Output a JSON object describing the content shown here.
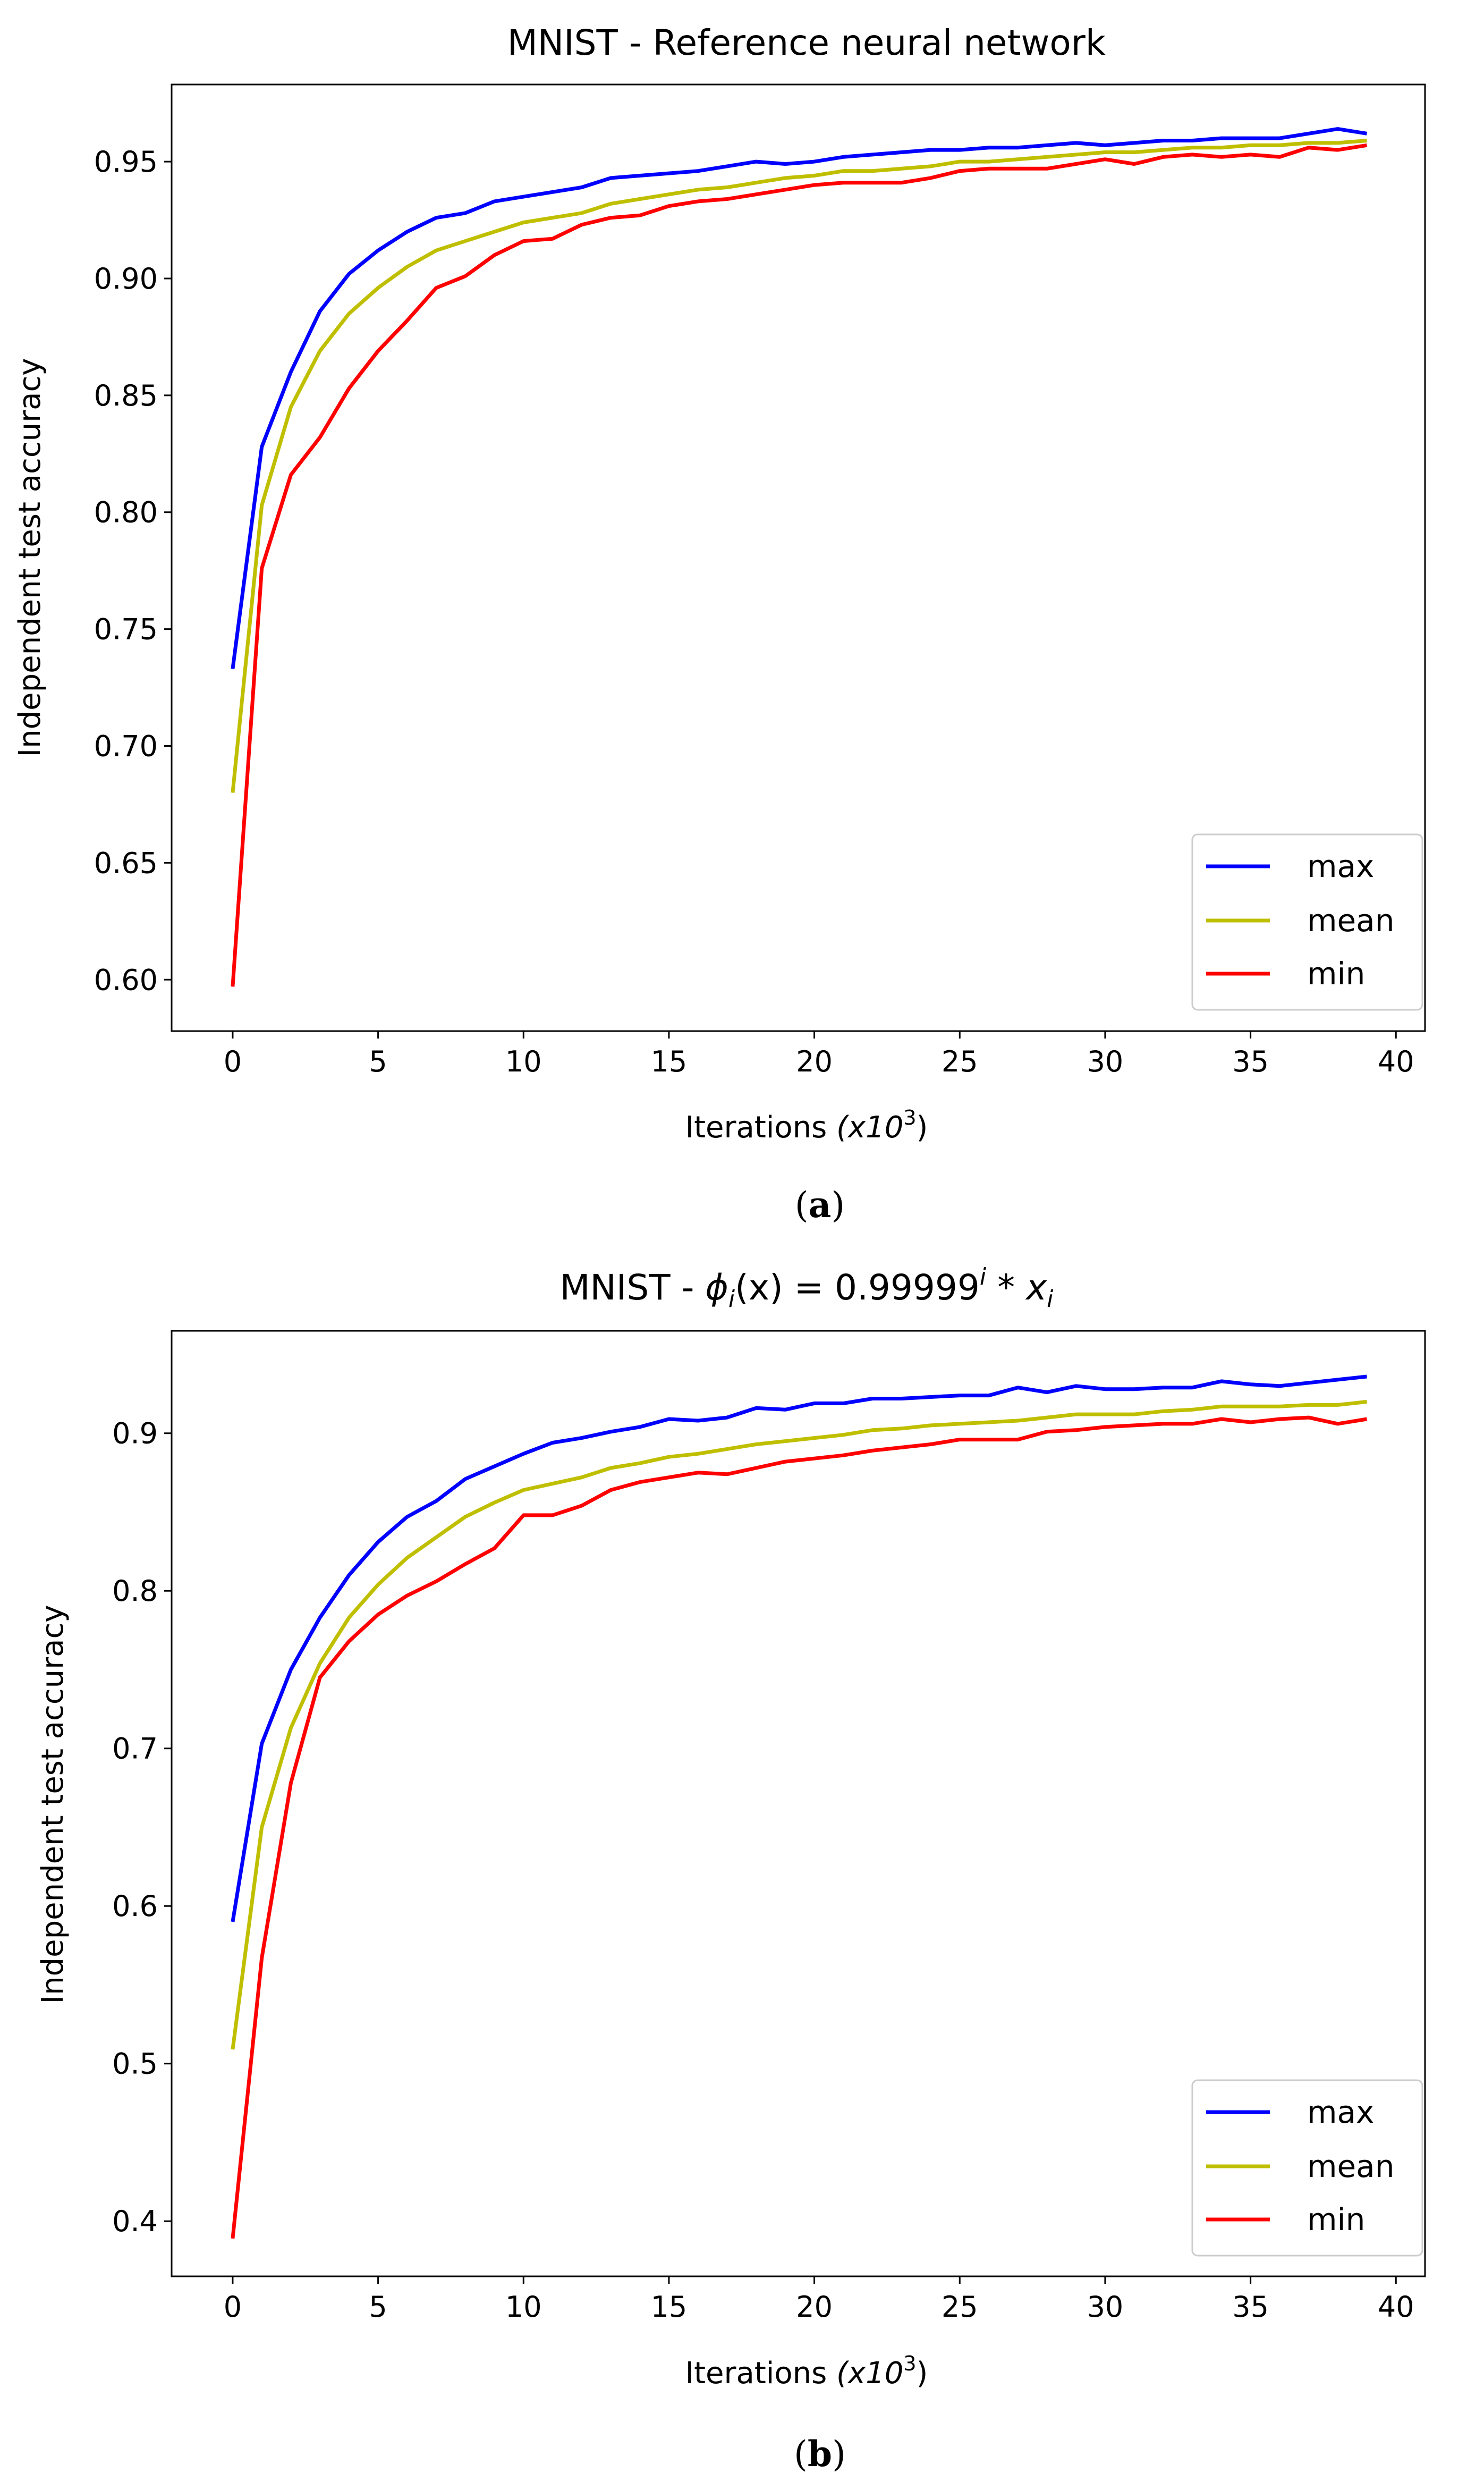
{
  "chart_data": [
    {
      "type": "line",
      "title": "MNIST - Reference neural network",
      "xlabel": "Iterations",
      "xlabel_unit": "(x10",
      "xlabel_exp": "3",
      "xlabel_close": ")",
      "ylabel": "Independent test accuracy",
      "xlim": [
        -2.1,
        41
      ],
      "ylim": [
        0.578,
        0.983
      ],
      "xticks": [
        0,
        5,
        10,
        15,
        20,
        25,
        30,
        35,
        40
      ],
      "xtick_labels": [
        "0",
        "5",
        "10",
        "15",
        "20",
        "25",
        "30",
        "35",
        "40"
      ],
      "yticks": [
        0.6,
        0.65,
        0.7,
        0.75,
        0.8,
        0.85,
        0.9,
        0.95
      ],
      "ytick_labels": [
        "0.60",
        "0.65",
        "0.70",
        "0.75",
        "0.80",
        "0.85",
        "0.90",
        "0.95"
      ],
      "legend_position": "lower-right",
      "caption_open": "(",
      "caption_letter": "a",
      "caption_close": ")",
      "x": [
        0,
        1,
        2,
        3,
        4,
        5,
        6,
        7,
        8,
        9,
        10,
        11,
        12,
        13,
        14,
        15,
        16,
        17,
        18,
        19,
        20,
        21,
        22,
        23,
        24,
        25,
        26,
        27,
        28,
        29,
        30,
        31,
        32,
        33,
        34,
        35,
        36,
        37,
        38,
        39
      ],
      "series": [
        {
          "name": "max",
          "color": "#0000ff",
          "values": [
            0.733,
            0.828,
            0.86,
            0.886,
            0.902,
            0.912,
            0.92,
            0.926,
            0.928,
            0.933,
            0.935,
            0.937,
            0.939,
            0.943,
            0.944,
            0.945,
            0.946,
            0.948,
            0.95,
            0.949,
            0.95,
            0.952,
            0.953,
            0.954,
            0.955,
            0.955,
            0.956,
            0.956,
            0.957,
            0.958,
            0.957,
            0.958,
            0.959,
            0.959,
            0.96,
            0.96,
            0.96,
            0.962,
            0.964,
            0.962
          ]
        },
        {
          "name": "mean",
          "color": "#bfbf00",
          "values": [
            0.68,
            0.803,
            0.845,
            0.869,
            0.885,
            0.896,
            0.905,
            0.912,
            0.916,
            0.92,
            0.924,
            0.926,
            0.928,
            0.932,
            0.934,
            0.936,
            0.938,
            0.939,
            0.941,
            0.943,
            0.944,
            0.946,
            0.946,
            0.947,
            0.948,
            0.95,
            0.95,
            0.951,
            0.952,
            0.953,
            0.954,
            0.954,
            0.955,
            0.956,
            0.956,
            0.957,
            0.957,
            0.958,
            0.958,
            0.959
          ]
        },
        {
          "name": "min",
          "color": "#ff0000",
          "values": [
            0.597,
            0.776,
            0.816,
            0.832,
            0.853,
            0.869,
            0.882,
            0.896,
            0.901,
            0.91,
            0.916,
            0.917,
            0.923,
            0.926,
            0.927,
            0.931,
            0.933,
            0.934,
            0.936,
            0.938,
            0.94,
            0.941,
            0.941,
            0.941,
            0.943,
            0.946,
            0.947,
            0.947,
            0.947,
            0.949,
            0.951,
            0.949,
            0.952,
            0.953,
            0.952,
            0.953,
            0.952,
            0.956,
            0.955,
            0.957
          ]
        }
      ]
    },
    {
      "type": "line",
      "title_prefix": "MNIST - ",
      "title_phi": "ϕ",
      "title_sub_i": "i",
      "title_paren_x": "(x) = 0.99999",
      "title_sup_i": "i",
      "title_star_x": " * x",
      "title_sub_i2": "i",
      "xlabel": "Iterations",
      "xlabel_unit": "(x10",
      "xlabel_exp": "3",
      "xlabel_close": ")",
      "ylabel": "Independent test accuracy",
      "xlim": [
        -2.1,
        41
      ],
      "ylim": [
        0.365,
        0.965
      ],
      "xticks": [
        0,
        5,
        10,
        15,
        20,
        25,
        30,
        35,
        40
      ],
      "xtick_labels": [
        "0",
        "5",
        "10",
        "15",
        "20",
        "25",
        "30",
        "35",
        "40"
      ],
      "yticks": [
        0.4,
        0.5,
        0.6,
        0.7,
        0.8,
        0.9
      ],
      "ytick_labels": [
        "0.4",
        "0.5",
        "0.6",
        "0.7",
        "0.8",
        "0.9"
      ],
      "legend_position": "lower-right",
      "caption_open": "(",
      "caption_letter": "b",
      "caption_close": ")",
      "x": [
        0,
        1,
        2,
        3,
        4,
        5,
        6,
        7,
        8,
        9,
        10,
        11,
        12,
        13,
        14,
        15,
        16,
        17,
        18,
        19,
        20,
        21,
        22,
        23,
        24,
        25,
        26,
        27,
        28,
        29,
        30,
        31,
        32,
        33,
        34,
        35,
        36,
        37,
        38,
        39
      ],
      "series": [
        {
          "name": "max",
          "color": "#0000ff",
          "values": [
            0.59,
            0.703,
            0.75,
            0.783,
            0.81,
            0.831,
            0.847,
            0.857,
            0.871,
            0.879,
            0.887,
            0.894,
            0.897,
            0.901,
            0.904,
            0.909,
            0.908,
            0.91,
            0.916,
            0.915,
            0.919,
            0.919,
            0.922,
            0.922,
            0.923,
            0.924,
            0.924,
            0.929,
            0.926,
            0.93,
            0.928,
            0.928,
            0.929,
            0.929,
            0.933,
            0.931,
            0.93,
            0.932,
            0.934,
            0.936
          ]
        },
        {
          "name": "mean",
          "color": "#bfbf00",
          "values": [
            0.509,
            0.65,
            0.713,
            0.754,
            0.783,
            0.804,
            0.821,
            0.834,
            0.847,
            0.856,
            0.864,
            0.868,
            0.872,
            0.878,
            0.881,
            0.885,
            0.887,
            0.89,
            0.893,
            0.895,
            0.897,
            0.899,
            0.902,
            0.903,
            0.905,
            0.906,
            0.907,
            0.908,
            0.91,
            0.912,
            0.912,
            0.912,
            0.914,
            0.915,
            0.917,
            0.917,
            0.917,
            0.918,
            0.918,
            0.92
          ]
        },
        {
          "name": "min",
          "color": "#ff0000",
          "values": [
            0.389,
            0.567,
            0.678,
            0.745,
            0.768,
            0.785,
            0.797,
            0.806,
            0.817,
            0.827,
            0.848,
            0.848,
            0.854,
            0.864,
            0.869,
            0.872,
            0.875,
            0.874,
            0.878,
            0.882,
            0.884,
            0.886,
            0.889,
            0.891,
            0.893,
            0.896,
            0.896,
            0.896,
            0.901,
            0.902,
            0.904,
            0.905,
            0.906,
            0.906,
            0.909,
            0.907,
            0.909,
            0.91,
            0.906,
            0.909
          ]
        }
      ]
    }
  ]
}
